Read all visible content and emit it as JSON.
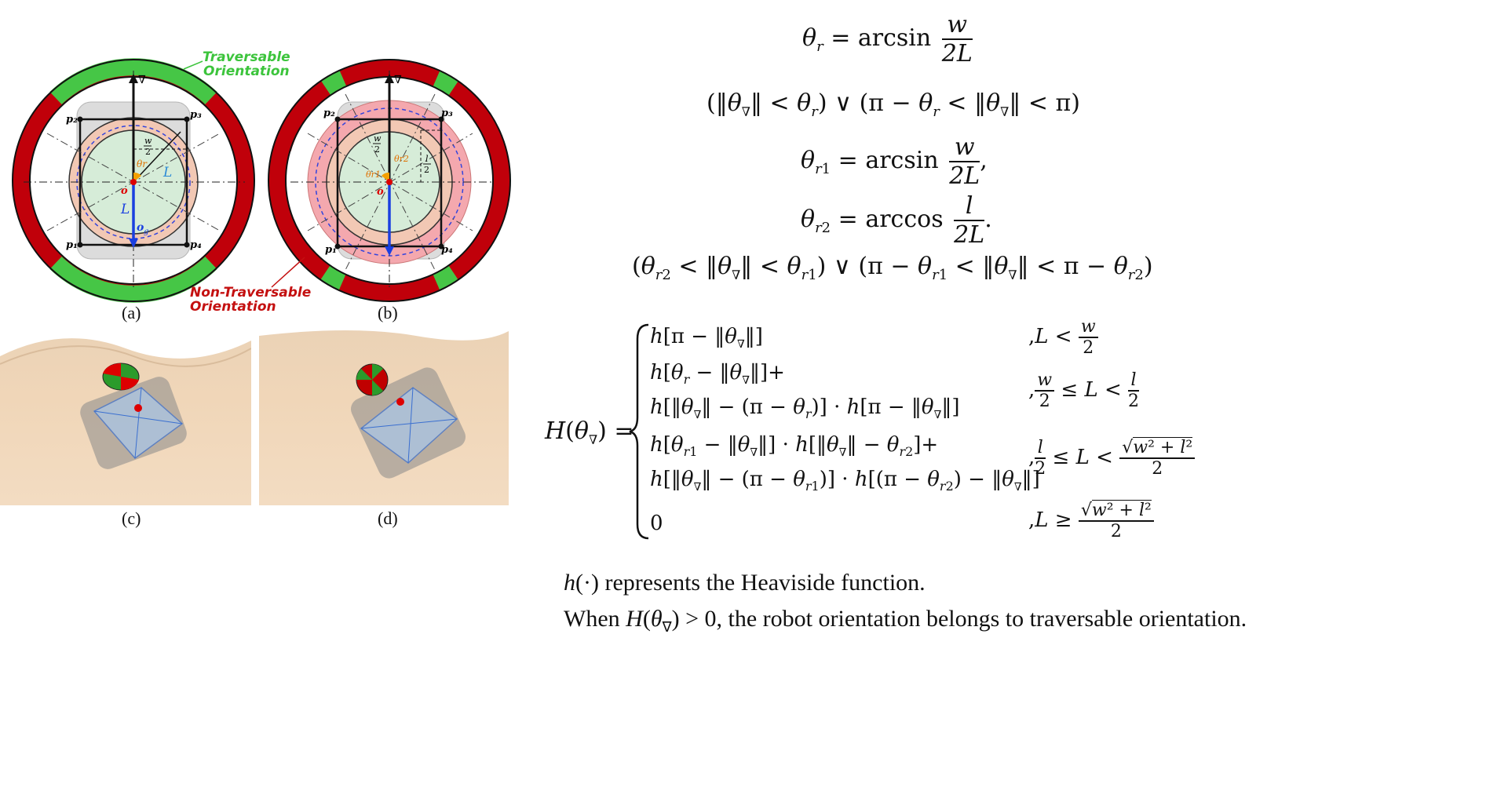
{
  "figure": {
    "panels": [
      {
        "caption": "(a)"
      },
      {
        "caption": "(b)"
      },
      {
        "caption": "(c)"
      },
      {
        "caption": "(d)"
      }
    ],
    "legend": {
      "traversable": "Traversable Orientation",
      "traversable_l1": "Traversable",
      "traversable_l2": "Orientation",
      "non_traversable_l1": "Non-Traversable",
      "non_traversable_l2": "Orientation"
    },
    "labels": {
      "p1": "p₁",
      "p2": "p₂",
      "p3": "p₃",
      "p4": "p₄",
      "origin": "o",
      "og": "o_g",
      "L": "L",
      "w_over_2": "w/2",
      "l_over_2": "l/2",
      "theta_r": "θr",
      "theta_r1": "θr1",
      "theta_r2": "θr2",
      "nabla": "∇"
    },
    "colors": {
      "green": "#46c646",
      "red": "#c0000a",
      "traversable_text": "#3cc43c",
      "non_traversable_text": "#c41010"
    }
  },
  "equations": {
    "eq1": "θr = arcsin w/2L",
    "eq2": "(‖θ∇‖ < θr) ∨ (π − θr < ‖θ∇‖ < π)",
    "eq3": "θr1 = arcsin w/2L,",
    "eq4": "θr2 = arccos l/2L.",
    "eq5": "(θr2 < ‖θ∇‖ < θr1) ∨ (π − θr1 < ‖θ∇‖ < π − θr2)",
    "H_lhs": "H(θ∇) =",
    "cases": [
      {
        "expr": "h[π − ‖θ∇‖]",
        "cond": ", L < w/2"
      },
      {
        "expr": "h[θr − ‖θ∇‖]+ h[‖θ∇‖ − (π − θr)] · h[π − ‖θ∇‖]",
        "cond": ", w/2 ≤ L < l/2"
      },
      {
        "expr": "h[θr1 − ‖θ∇‖] · h[‖θ∇‖ − θr2]+ h[‖θ∇‖ − (π − θr1)] · h[(π − θr2) − ‖θ∇‖]",
        "cond": ", l/2 ≤ L < √(w²+l²)/2"
      },
      {
        "expr": "0",
        "cond": ", L ≥ √(w²+l²)/2"
      }
    ]
  },
  "text": {
    "heaviside": "h(·) represents the Heaviside function.",
    "conclusion": "When H(θ∇) > 0, the robot orientation belongs to traversable orientation."
  }
}
